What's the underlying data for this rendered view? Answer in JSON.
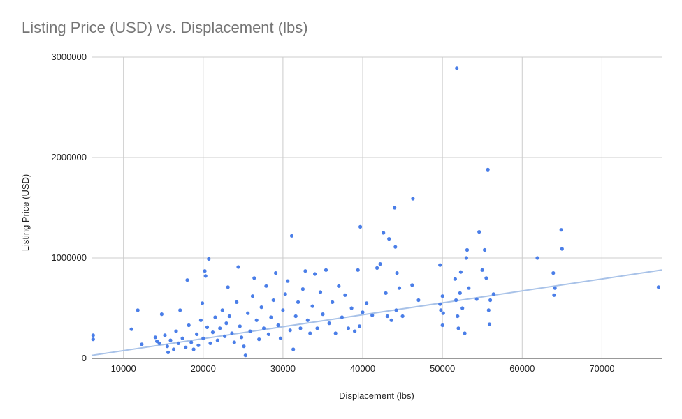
{
  "chart_data": {
    "type": "scatter",
    "title": "Listing Price (USD) vs. Displacement (lbs)",
    "xlabel": "Displacement (lbs)",
    "ylabel": "Listing Price (USD)",
    "xlim": [
      6000,
      77500
    ],
    "ylim": [
      0,
      3000000
    ],
    "x_ticks": [
      10000,
      20000,
      30000,
      40000,
      50000,
      60000,
      70000
    ],
    "x_tick_labels": [
      "10000",
      "20000",
      "30000",
      "40000",
      "50000",
      "60000",
      "70000"
    ],
    "y_ticks": [
      0,
      1000000,
      2000000,
      3000000
    ],
    "y_tick_labels": [
      "0",
      "1000000",
      "2000000",
      "3000000"
    ],
    "grid": true,
    "legend": "none",
    "colors": {
      "points": "#4a7ee8",
      "trendline": "#a8c2e8",
      "grid": "#cccccc",
      "title": "#757575"
    },
    "trendline": {
      "type": "linear",
      "x": [
        6000,
        77500
      ],
      "y": [
        30000,
        880000
      ]
    },
    "series": [
      {
        "points": [
          [
            6200,
            230000
          ],
          [
            6200,
            190000
          ],
          [
            11000,
            290000
          ],
          [
            11800,
            480000
          ],
          [
            12300,
            140000
          ],
          [
            14000,
            210000
          ],
          [
            14200,
            170000
          ],
          [
            14500,
            150000
          ],
          [
            14800,
            440000
          ],
          [
            15200,
            230000
          ],
          [
            15500,
            120000
          ],
          [
            15600,
            60000
          ],
          [
            15900,
            180000
          ],
          [
            16300,
            90000
          ],
          [
            16600,
            270000
          ],
          [
            16900,
            150000
          ],
          [
            17100,
            480000
          ],
          [
            17400,
            200000
          ],
          [
            17800,
            110000
          ],
          [
            18000,
            780000
          ],
          [
            18200,
            330000
          ],
          [
            18500,
            160000
          ],
          [
            18800,
            90000
          ],
          [
            19200,
            240000
          ],
          [
            19400,
            130000
          ],
          [
            19700,
            380000
          ],
          [
            19900,
            550000
          ],
          [
            20000,
            200000
          ],
          [
            20200,
            870000
          ],
          [
            20300,
            820000
          ],
          [
            20500,
            310000
          ],
          [
            20700,
            990000
          ],
          [
            20900,
            150000
          ],
          [
            21200,
            260000
          ],
          [
            21500,
            410000
          ],
          [
            21800,
            180000
          ],
          [
            22100,
            300000
          ],
          [
            22400,
            480000
          ],
          [
            22700,
            220000
          ],
          [
            22900,
            350000
          ],
          [
            23100,
            710000
          ],
          [
            23300,
            420000
          ],
          [
            23600,
            250000
          ],
          [
            23900,
            160000
          ],
          [
            24200,
            560000
          ],
          [
            24400,
            910000
          ],
          [
            24600,
            320000
          ],
          [
            24800,
            210000
          ],
          [
            25100,
            120000
          ],
          [
            25300,
            30000
          ],
          [
            25600,
            450000
          ],
          [
            25900,
            270000
          ],
          [
            26200,
            620000
          ],
          [
            26400,
            800000
          ],
          [
            26700,
            380000
          ],
          [
            27000,
            190000
          ],
          [
            27300,
            510000
          ],
          [
            27600,
            300000
          ],
          [
            27900,
            720000
          ],
          [
            28200,
            240000
          ],
          [
            28500,
            410000
          ],
          [
            28800,
            580000
          ],
          [
            29100,
            850000
          ],
          [
            29400,
            330000
          ],
          [
            29700,
            200000
          ],
          [
            30000,
            480000
          ],
          [
            30300,
            640000
          ],
          [
            30600,
            770000
          ],
          [
            30900,
            280000
          ],
          [
            31100,
            1220000
          ],
          [
            31300,
            90000
          ],
          [
            31600,
            420000
          ],
          [
            31900,
            560000
          ],
          [
            32200,
            300000
          ],
          [
            32500,
            690000
          ],
          [
            32800,
            870000
          ],
          [
            33100,
            380000
          ],
          [
            33400,
            250000
          ],
          [
            33700,
            520000
          ],
          [
            34000,
            840000
          ],
          [
            34300,
            300000
          ],
          [
            34700,
            660000
          ],
          [
            35000,
            440000
          ],
          [
            35400,
            880000
          ],
          [
            35800,
            350000
          ],
          [
            36200,
            560000
          ],
          [
            36600,
            250000
          ],
          [
            37000,
            720000
          ],
          [
            37400,
            410000
          ],
          [
            37800,
            630000
          ],
          [
            38200,
            300000
          ],
          [
            38600,
            500000
          ],
          [
            39000,
            270000
          ],
          [
            39400,
            880000
          ],
          [
            39600,
            320000
          ],
          [
            39700,
            1310000
          ],
          [
            40000,
            460000
          ],
          [
            40500,
            550000
          ],
          [
            41200,
            430000
          ],
          [
            41800,
            900000
          ],
          [
            42200,
            940000
          ],
          [
            42600,
            1250000
          ],
          [
            42900,
            650000
          ],
          [
            43100,
            420000
          ],
          [
            43300,
            1190000
          ],
          [
            43600,
            380000
          ],
          [
            44000,
            1500000
          ],
          [
            44100,
            1110000
          ],
          [
            44200,
            480000
          ],
          [
            44300,
            850000
          ],
          [
            44600,
            700000
          ],
          [
            45000,
            420000
          ],
          [
            46300,
            1590000
          ],
          [
            46200,
            730000
          ],
          [
            47000,
            580000
          ],
          [
            49700,
            540000
          ],
          [
            49700,
            930000
          ],
          [
            49800,
            480000
          ],
          [
            50000,
            620000
          ],
          [
            50000,
            330000
          ],
          [
            50100,
            450000
          ],
          [
            51600,
            790000
          ],
          [
            51700,
            580000
          ],
          [
            51800,
            2890000
          ],
          [
            51900,
            420000
          ],
          [
            52000,
            300000
          ],
          [
            52200,
            650000
          ],
          [
            52300,
            860000
          ],
          [
            52500,
            500000
          ],
          [
            52800,
            250000
          ],
          [
            53000,
            1000000
          ],
          [
            53100,
            1080000
          ],
          [
            53300,
            700000
          ],
          [
            54300,
            590000
          ],
          [
            54600,
            1260000
          ],
          [
            55000,
            880000
          ],
          [
            55300,
            1080000
          ],
          [
            55500,
            800000
          ],
          [
            55700,
            1880000
          ],
          [
            55800,
            480000
          ],
          [
            55900,
            340000
          ],
          [
            56000,
            580000
          ],
          [
            56400,
            640000
          ],
          [
            61900,
            1000000
          ],
          [
            63900,
            850000
          ],
          [
            64000,
            630000
          ],
          [
            64100,
            700000
          ],
          [
            64900,
            1280000
          ],
          [
            65000,
            1090000
          ],
          [
            77100,
            710000
          ]
        ]
      }
    ]
  }
}
